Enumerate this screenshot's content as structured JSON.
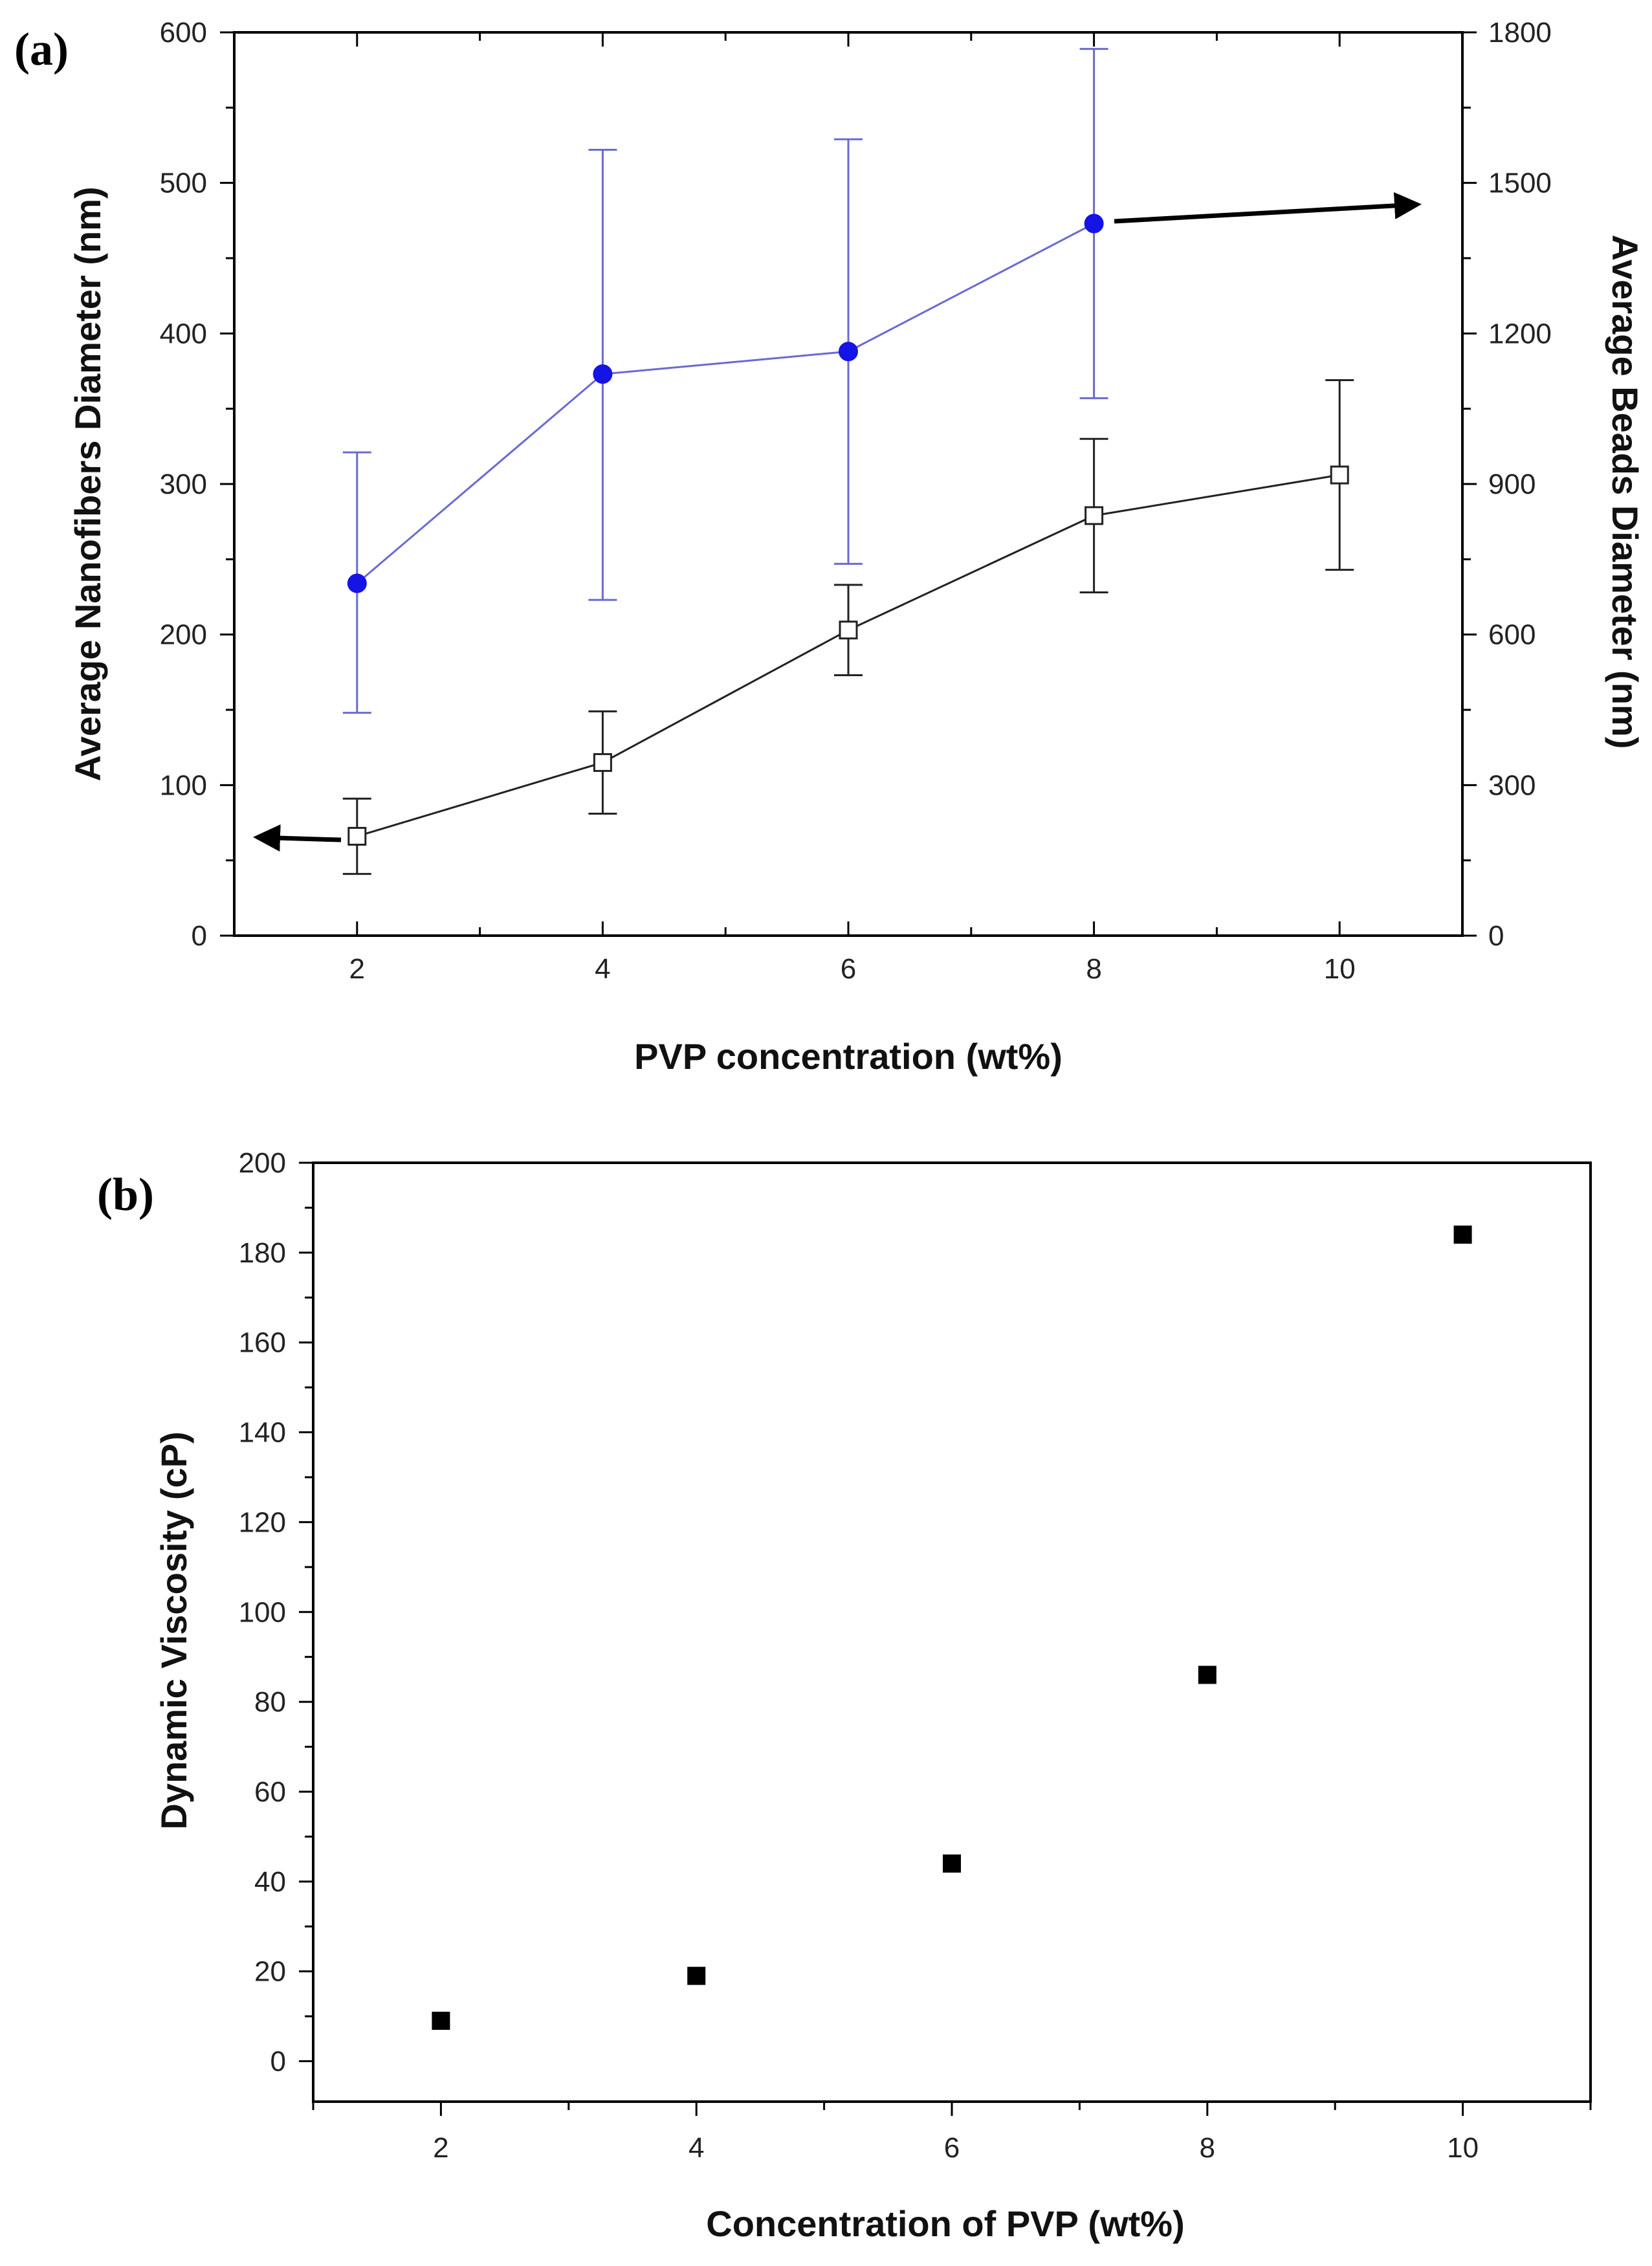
{
  "chart_data": [
    {
      "panel_label": "(a)",
      "type": "line",
      "xlabel": "PVP concentration (wt%)",
      "ylabel_left": "Average Nanofibers Diameter (nm)",
      "ylabel_right": "Average Beads Diameter (nm)",
      "xlim": [
        1,
        11
      ],
      "ylim_left": [
        0,
        600
      ],
      "ylim_right": [
        0,
        1800
      ],
      "xticks": [
        2,
        4,
        6,
        8,
        10
      ],
      "yticks_left": [
        0,
        100,
        200,
        300,
        400,
        500,
        600
      ],
      "yticks_right": [
        0,
        300,
        600,
        900,
        1200,
        1500,
        1800
      ],
      "series": [
        {
          "name": "Average Beads Diameter",
          "axis": "right",
          "marker": "filled-circle",
          "color": "#1414e6",
          "line_color": "#6a6ad2",
          "x": [
            2,
            4,
            6,
            8
          ],
          "values": [
            702,
            1119,
            1164,
            1419
          ],
          "error_low": [
            444,
            669,
            741,
            1071
          ],
          "error_high": [
            963,
            1566,
            1587,
            1767
          ]
        },
        {
          "name": "Average Nanofibers Diameter",
          "axis": "left",
          "marker": "open-square",
          "color": "#222222",
          "line_color": "#222222",
          "x": [
            2,
            4,
            6,
            8,
            10
          ],
          "values": [
            66,
            115,
            203,
            279,
            306
          ],
          "error_low": [
            41,
            81,
            173,
            228,
            243
          ],
          "error_high": [
            91,
            149,
            233,
            330,
            369
          ]
        }
      ],
      "annotations": [
        {
          "type": "arrow",
          "meaning": "points to right axis",
          "series": "Average Beads Diameter"
        },
        {
          "type": "arrow",
          "meaning": "points to left axis",
          "series": "Average Nanofibers Diameter"
        }
      ]
    },
    {
      "panel_label": "(b)",
      "type": "scatter",
      "xlabel": "Concentration of PVP (wt%)",
      "ylabel": "Dynamic Viscosity (cP)",
      "xlim": [
        1,
        11
      ],
      "ylim": [
        -9,
        200
      ],
      "xticks": [
        2,
        4,
        6,
        8,
        10
      ],
      "yticks": [
        0,
        20,
        40,
        60,
        80,
        100,
        120,
        140,
        160,
        180,
        200
      ],
      "series": [
        {
          "name": "Dynamic Viscosity",
          "marker": "filled-square",
          "color": "#000000",
          "x": [
            2,
            4,
            6,
            8,
            10
          ],
          "values": [
            9,
            19,
            44,
            86,
            184
          ]
        }
      ]
    }
  ]
}
